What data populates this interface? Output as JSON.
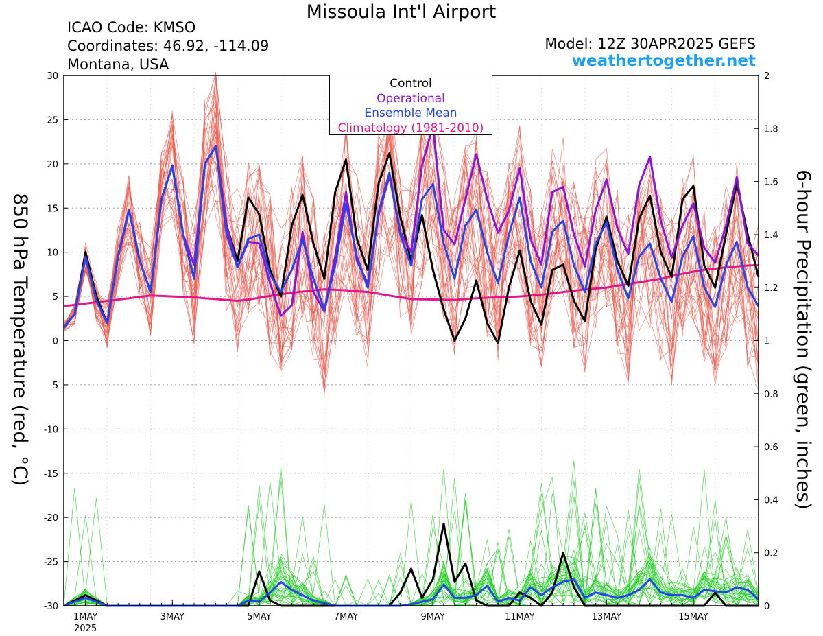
{
  "header": {
    "title": "Missoula Int'l Airport",
    "icao": "ICAO Code: KMSO",
    "coords": "Coordinates: 46.92, -114.09",
    "region": "Montana, USA",
    "model": "Model: 12Z 30APR2025 GEFS",
    "site": "weathertogether.net"
  },
  "legend": {
    "items": [
      {
        "label": "Control",
        "color": "#000000"
      },
      {
        "label": "Operational",
        "color": "#8a14d8"
      },
      {
        "label": "Ensemble Mean",
        "color": "#2345f0"
      },
      {
        "label": "Climatology (1981-2010)",
        "color": "#e6168a"
      }
    ]
  },
  "chart_data": {
    "type": "line",
    "ylabel": "850 hPa Temperature (red, °C)",
    "y2label": "6-hour Precipitation (green, inches)",
    "ylim": [
      -30,
      30
    ],
    "y2lim": [
      0,
      2
    ],
    "xlim": [
      0.0,
      16.0
    ],
    "yticks": [
      "30",
      "25",
      "20",
      "15",
      "10",
      "5",
      "0",
      "-5",
      "-10",
      "-15",
      "-20",
      "-25",
      "-30"
    ],
    "y2ticks": [
      "2",
      "1.8",
      "1.6",
      "1.4",
      "1.2",
      "1",
      "0.8",
      "0.6",
      "0.4",
      "0.2",
      "0"
    ],
    "xticks": [
      {
        "x": 0.5,
        "label": "1MAY",
        "sub": "2025"
      },
      {
        "x": 2.5,
        "label": "3MAY"
      },
      {
        "x": 4.5,
        "label": "5MAY"
      },
      {
        "x": 6.5,
        "label": "7MAY"
      },
      {
        "x": 8.5,
        "label": "9MAY"
      },
      {
        "x": 10.5,
        "label": "11MAY"
      },
      {
        "x": 12.5,
        "label": "13MAY"
      },
      {
        "x": 14.5,
        "label": "15MAY"
      }
    ],
    "grid": true,
    "legend_position": "top-center",
    "x_start": 0.0,
    "x_step": 0.25,
    "series": [
      {
        "name": "Control",
        "color": "#000000",
        "values": [
          1.5,
          3,
          10,
          5,
          2,
          9.5,
          14.8,
          9,
          5.5,
          16,
          19.8,
          12,
          7,
          20,
          22,
          13,
          9,
          16.2,
          14.3,
          8,
          5,
          13,
          16.5,
          11,
          7,
          16.8,
          20.5,
          11.5,
          8,
          17.8,
          21.2,
          14,
          9,
          14.2,
          8,
          3.5,
          0,
          2.5,
          6.8,
          2,
          -0.3,
          6,
          10.2,
          4.5,
          1.8,
          8,
          8.6,
          4.5,
          2.2,
          10.4,
          14,
          9,
          6.2,
          13.8,
          16.4,
          10,
          7.2,
          16,
          17.5,
          8.5,
          6,
          12,
          17.8,
          12,
          7.2
        ]
      },
      {
        "name": "Operational",
        "color": "#8a14d8",
        "values": [
          1.5,
          3,
          9.5,
          4.5,
          2,
          9.5,
          14.8,
          9,
          5.5,
          16,
          19.8,
          12,
          8.6,
          20,
          22,
          13,
          8.3,
          11.2,
          11,
          6.5,
          2.8,
          4,
          12.3,
          5.5,
          3.3,
          9.5,
          16.8,
          9,
          6.5,
          14.2,
          18.6,
          12.3,
          10,
          19.8,
          24.3,
          12.5,
          10.9,
          16,
          21.1,
          16,
          12.2,
          14.7,
          19.5,
          11.5,
          8.6,
          16.8,
          17.4,
          12,
          8.4,
          14.8,
          18.2,
          12.7,
          9.8,
          17.6,
          20.8,
          13.5,
          9.4,
          13,
          15.5,
          10.5,
          8.8,
          13,
          18.5,
          11,
          9.6
        ]
      },
      {
        "name": "Ensemble Mean",
        "color": "#2345f0",
        "values": [
          1.5,
          3,
          9.5,
          4.5,
          2,
          9.5,
          14.8,
          9,
          5.5,
          16,
          19.8,
          12,
          7,
          20,
          22,
          12,
          8.3,
          11.5,
          12,
          7.5,
          5.5,
          8,
          11.5,
          7,
          3.5,
          8.5,
          15.5,
          9.5,
          6,
          14.5,
          19,
          12,
          8.5,
          16,
          17.7,
          11,
          7,
          13,
          14.8,
          10,
          6.5,
          12,
          16.2,
          9,
          6,
          12.3,
          13.6,
          8.5,
          5.5,
          11,
          13.4,
          8,
          4.8,
          9.5,
          11,
          7,
          4.4,
          9.5,
          11.8,
          6,
          3.8,
          8.5,
          11.2,
          6,
          3.9
        ]
      },
      {
        "name": "Climatology (1981-2010)",
        "color": "#e6168a",
        "values": [
          3.9,
          4.05,
          4.2,
          4.35,
          4.5,
          4.65,
          4.8,
          4.95,
          5.1,
          5.05,
          5.0,
          4.95,
          4.9,
          4.8,
          4.7,
          4.6,
          4.5,
          4.65,
          4.85,
          5.05,
          5.25,
          5.4,
          5.55,
          5.7,
          5.8,
          5.75,
          5.7,
          5.6,
          5.5,
          5.3,
          5.1,
          4.9,
          4.7,
          4.68,
          4.66,
          4.64,
          4.62,
          4.7,
          4.8,
          4.85,
          4.9,
          4.95,
          5.0,
          5.1,
          5.2,
          5.35,
          5.5,
          5.65,
          5.8,
          5.9,
          6.0,
          6.2,
          6.4,
          6.6,
          6.8,
          7.0,
          7.3,
          7.55,
          7.8,
          8.0,
          8.15,
          8.3,
          8.4,
          8.5,
          8.55
        ]
      }
    ],
    "precip_series": [
      {
        "name": "Control",
        "color": "#000000",
        "values": [
          0,
          0.02,
          0.04,
          0.02,
          0,
          0,
          0,
          0,
          0,
          0,
          0,
          0,
          0,
          0,
          0,
          0,
          0,
          0,
          0.13,
          0.02,
          0,
          0,
          0,
          0,
          0,
          0,
          0,
          0,
          0,
          0,
          0,
          0.05,
          0.14,
          0.03,
          0.1,
          0.31,
          0.09,
          0.16,
          0.02,
          0,
          0,
          0,
          0.05,
          0.03,
          0,
          0.05,
          0.2,
          0.07,
          0,
          0,
          0,
          0,
          0,
          0,
          0,
          0,
          0,
          0,
          0,
          0,
          0.05,
          0,
          0,
          0,
          0
        ]
      },
      {
        "name": "Ensemble Mean",
        "color": "#2345f0",
        "values": [
          0,
          0.015,
          0.03,
          0.015,
          0,
          0,
          0,
          0,
          0,
          0,
          0,
          0,
          0,
          0,
          0,
          0,
          0,
          0.02,
          0.015,
          0.05,
          0.09,
          0.06,
          0.04,
          0.02,
          0.01,
          0,
          0,
          0,
          0,
          0,
          0,
          0,
          0.005,
          0.015,
          0.025,
          0.08,
          0.03,
          0.03,
          0.04,
          0.075,
          0.015,
          0.03,
          0.02,
          0.07,
          0.04,
          0.07,
          0.09,
          0.1,
          0.03,
          0.05,
          0.04,
          0.03,
          0.04,
          0.06,
          0.1,
          0.05,
          0.04,
          0.04,
          0.03,
          0.06,
          0.055,
          0.05,
          0.07,
          0.06,
          0.025
        ]
      }
    ]
  }
}
